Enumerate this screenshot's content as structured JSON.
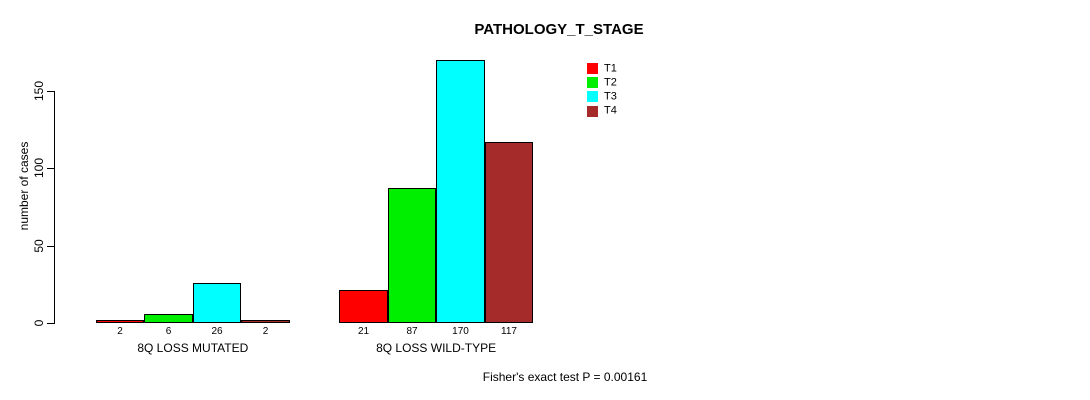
{
  "chart_data": {
    "type": "bar",
    "title": "PATHOLOGY_T_STAGE",
    "xlabel": "",
    "ylabel": "number of cases",
    "ylim": [
      0,
      150
    ],
    "yticks": [
      0,
      50,
      100,
      150
    ],
    "grid": false,
    "legend_position": "top-right",
    "categories": [
      "8Q LOSS MUTATED",
      "8Q LOSS WILD-TYPE"
    ],
    "series": [
      {
        "name": "T1",
        "color": "#ff0000",
        "values": [
          2,
          21
        ]
      },
      {
        "name": "T2",
        "color": "#00ee00",
        "values": [
          6,
          87
        ]
      },
      {
        "name": "T3",
        "color": "#00ffff",
        "values": [
          26,
          170
        ]
      },
      {
        "name": "T4",
        "color": "#a52a2a",
        "values": [
          2,
          117
        ]
      }
    ],
    "bar_value_labels": [
      [
        2,
        6,
        26,
        2
      ],
      [
        21,
        87,
        170,
        117
      ]
    ],
    "annotation": "Fisher's exact test P = 0.00161",
    "colors": {
      "axis": "#000000",
      "text": "#000000",
      "background": "#ffffff"
    }
  }
}
